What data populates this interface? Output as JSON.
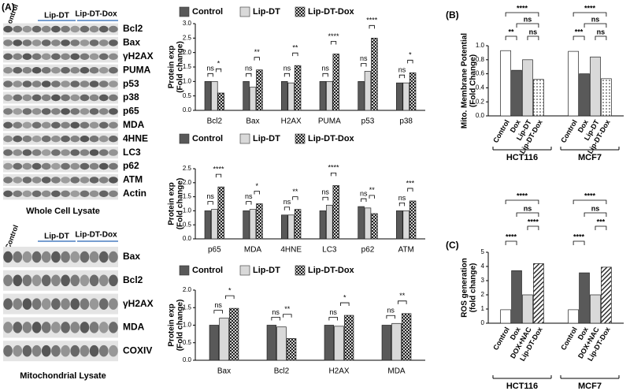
{
  "panels": [
    "(A)",
    "(B)",
    "(C)"
  ],
  "blots": [
    {
      "groups": [
        "Control",
        "Lip-DT",
        "Lip-DT-Dox"
      ],
      "rows": [
        "Bcl2",
        "Bax",
        "γH2AX",
        "PUMA",
        "p53",
        "p38",
        "p65",
        "MDA",
        "4HNE",
        "LC3",
        "p62",
        "ATM",
        "Actin"
      ],
      "caption": "Whole Cell Lysate"
    },
    {
      "groups": [
        "Control",
        "Lip-DT",
        "Lip-DT-Dox"
      ],
      "rows": [
        "Bax",
        "Bcl2",
        "γH2AX",
        "MDA",
        "COXIV"
      ],
      "caption": "Mitochondrial Lysate"
    }
  ],
  "chart_data": [
    {
      "type": "bar",
      "legend": "top",
      "ylabel": [
        "Protein exp",
        "(Fold change)"
      ],
      "categories": [
        "Bcl2",
        "Bax",
        "H2AX",
        "PUMA",
        "p53",
        "p38"
      ],
      "series": [
        {
          "name": "Control",
          "color": "#595959",
          "values": [
            1.0,
            1.0,
            1.0,
            1.0,
            1.0,
            0.95
          ]
        },
        {
          "name": "Lip-DT",
          "color": "#d9d9d9",
          "values": [
            1.0,
            0.8,
            0.95,
            1.0,
            1.35,
            0.95
          ]
        },
        {
          "name": "Lip-DT-Dox",
          "color": "#d0d0d0",
          "hatch": "checker",
          "values": [
            0.6,
            1.4,
            1.55,
            1.95,
            2.5,
            1.3
          ]
        }
      ],
      "annotations": [
        [
          "ns",
          "*"
        ],
        [
          "ns",
          "**"
        ],
        [
          "ns",
          "**"
        ],
        [
          "ns",
          "****"
        ],
        [
          "ns",
          "****"
        ],
        [
          "ns",
          "*"
        ]
      ],
      "ylim": [
        0,
        3.0
      ],
      "yticks": [
        {
          "value": 0,
          "label": "0.0"
        },
        {
          "value": 0.5,
          "label": "0.5"
        },
        {
          "value": 1,
          "label": "1.0"
        },
        {
          "value": 1.5,
          "label": "1.5"
        },
        {
          "value": 2,
          "label": "2.0"
        },
        {
          "value": 2.5,
          "label": "2.5"
        },
        {
          "value": 3,
          "label": "3.0"
        }
      ]
    },
    {
      "type": "bar",
      "legend": "top",
      "ylabel": [
        "Protein exp",
        "(Fold change)"
      ],
      "categories": [
        "p65",
        "MDA",
        "4HNE",
        "LC3",
        "p62",
        "ATM"
      ],
      "series": [
        {
          "name": "Control",
          "color": "#595959",
          "values": [
            1.0,
            1.0,
            0.85,
            1.0,
            1.15,
            1.0
          ]
        },
        {
          "name": "Lip-DT",
          "color": "#d9d9d9",
          "values": [
            1.05,
            1.05,
            0.85,
            1.2,
            1.1,
            1.0
          ]
        },
        {
          "name": "Lip-DT-Dox",
          "color": "#d0d0d0",
          "hatch": "checker",
          "values": [
            1.85,
            1.25,
            1.05,
            1.9,
            0.9,
            1.35
          ]
        }
      ],
      "annotations": [
        [
          "ns",
          "****"
        ],
        [
          "ns",
          "*"
        ],
        [
          "ns",
          "**"
        ],
        [
          "ns",
          "****"
        ],
        [
          "ns",
          "**"
        ],
        [
          "ns",
          "***"
        ]
      ],
      "ylim": [
        0,
        2.5
      ],
      "yticks": [
        {
          "value": 0,
          "label": "0.0"
        },
        {
          "value": 0.5,
          "label": "0.5"
        },
        {
          "value": 1,
          "label": "1.0"
        },
        {
          "value": 1.5,
          "label": "1.5"
        },
        {
          "value": 2,
          "label": "2.0"
        },
        {
          "value": 2.5,
          "label": "2.5"
        }
      ]
    },
    {
      "type": "bar",
      "legend": "top",
      "ylabel": [
        "Protein exp",
        "(Fold change)"
      ],
      "categories": [
        "Bax",
        "Bcl2",
        "H2AX",
        "MDA"
      ],
      "series": [
        {
          "name": "Control",
          "color": "#595959",
          "values": [
            1.0,
            1.0,
            1.0,
            1.0
          ]
        },
        {
          "name": "Lip-DT",
          "color": "#d9d9d9",
          "values": [
            1.2,
            0.95,
            0.97,
            1.05
          ]
        },
        {
          "name": "Lip-DT-Dox",
          "color": "#d0d0d0",
          "hatch": "checker",
          "values": [
            1.48,
            0.62,
            1.28,
            1.33
          ]
        }
      ],
      "annotations": [
        [
          "ns",
          "*"
        ],
        [
          "ns",
          "**"
        ],
        [
          "ns",
          "*"
        ],
        [
          "ns",
          "**"
        ]
      ],
      "ylim": [
        0,
        2.0
      ],
      "yticks": [
        {
          "value": 0,
          "label": "0.0"
        },
        {
          "value": 0.5,
          "label": "0.5"
        },
        {
          "value": 1,
          "label": "1.0"
        },
        {
          "value": 1.5,
          "label": "1.5"
        },
        {
          "value": 2,
          "label": "2.0"
        }
      ]
    },
    {
      "type": "bar",
      "legend": "none",
      "ylabel": [
        "Mito. Membrane Potential",
        "(Fold Change)"
      ],
      "categories": [
        "HCT116",
        "MCF7"
      ],
      "series": [
        {
          "name": "Control",
          "color": "#ffffff",
          "values": [
            0.93,
            0.92
          ]
        },
        {
          "name": "Dox",
          "color": "#595959",
          "values": [
            0.65,
            0.6
          ]
        },
        {
          "name": "Lip-DT",
          "color": "#d9d9d9",
          "values": [
            0.8,
            0.84
          ]
        },
        {
          "name": "Lip-DT-Dox",
          "color": "#ffffff",
          "hatch": "dots",
          "values": [
            0.52,
            0.53
          ]
        }
      ],
      "annotations": [
        [
          "****",
          "ns",
          "**",
          "ns"
        ],
        [
          "****",
          "ns",
          "***",
          "ns"
        ]
      ],
      "ylim": [
        0,
        1.0
      ],
      "yticks": [
        {
          "value": 0,
          "label": "0.0"
        },
        {
          "value": 0.2,
          "label": "0.2"
        },
        {
          "value": 0.4,
          "label": "0.4"
        },
        {
          "value": 0.6,
          "label": "0.6"
        },
        {
          "value": 0.8,
          "label": "0.8"
        },
        {
          "value": 1,
          "label": "1.0"
        }
      ]
    },
    {
      "type": "bar",
      "legend": "none",
      "ylabel": [
        "ROS generation",
        "(fold change)"
      ],
      "categories": [
        "HCT116",
        "MCF7"
      ],
      "series": [
        {
          "name": "Control",
          "color": "#ffffff",
          "values": [
            0.95,
            0.95
          ]
        },
        {
          "name": "Dox",
          "color": "#595959",
          "values": [
            3.7,
            3.55
          ]
        },
        {
          "name": "DOX+NAC",
          "color": "#d9d9d9",
          "values": [
            2.0,
            2.0
          ]
        },
        {
          "name": "Lip-DT-Dox",
          "color": "#ffffff",
          "hatch": "diagonal",
          "values": [
            4.2,
            3.95
          ]
        }
      ],
      "annotations": [
        [
          "****",
          "ns",
          "****",
          "****"
        ],
        [
          "****",
          "ns",
          "***",
          "****"
        ]
      ],
      "ylim": [
        0,
        5
      ],
      "yticks": [
        0,
        1,
        2,
        3,
        4,
        5
      ]
    }
  ]
}
